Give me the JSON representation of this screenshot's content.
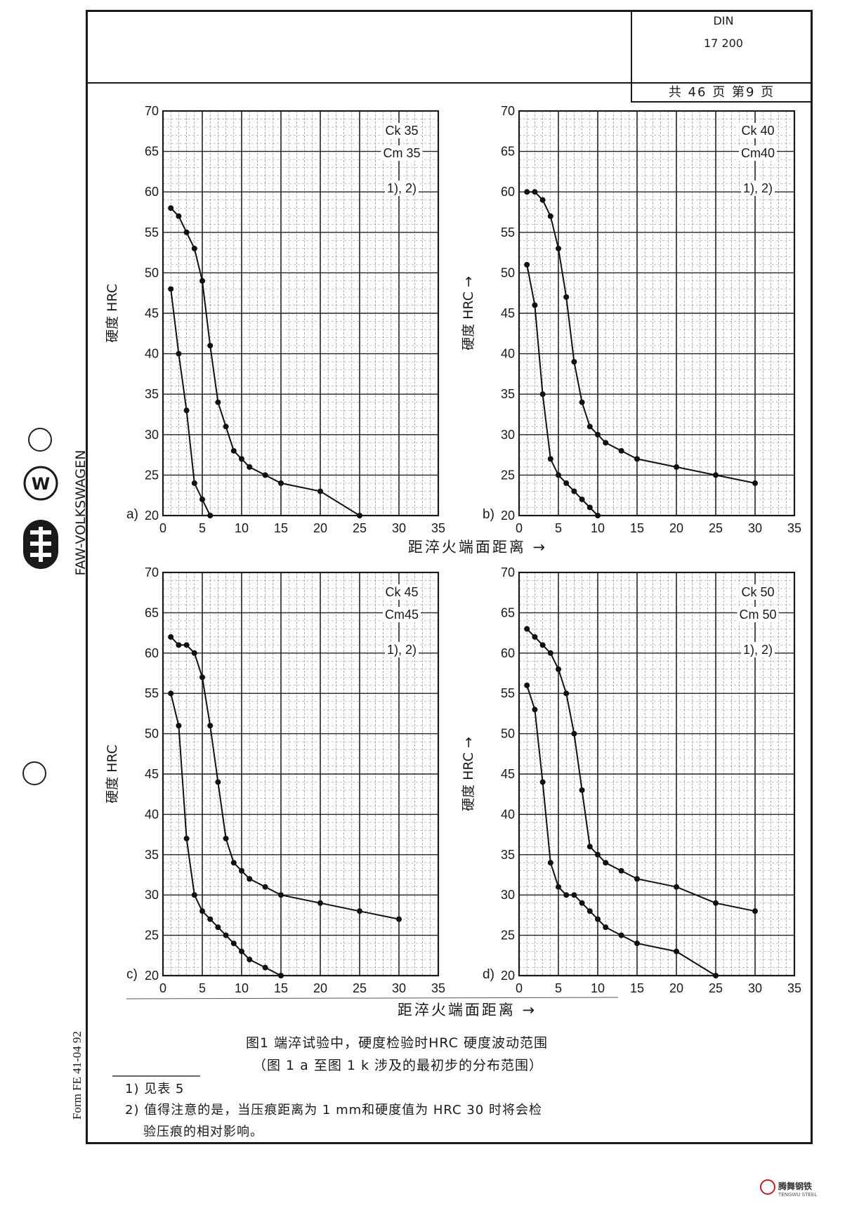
{
  "header": {
    "din_label": "DIN",
    "din_number": "17 200",
    "page_count": "共 46 页 第9 页"
  },
  "side": {
    "logo_text": "FAW-VOLKSWAGEN",
    "form_text": "Form FE 41-04 92"
  },
  "caption": {
    "line1": "图1  端淬试验中，硬度检验时HRC 硬度波动范围",
    "line2": "（图 1 a 至图 1 k 涉及的最初步的分布范围）"
  },
  "notes": {
    "note1": "1) 见表 5",
    "note2_line1": "2) 值得注意的是，当压痕距离为 1 mm和硬度值为 HRC 30 时将会检",
    "note2_line2": "验压痕的相对影响。"
  },
  "axis_titles": {
    "x": "距淬火端面距离 →",
    "y": "硬度 HRC"
  },
  "watermark": {
    "brand": "腾舞钢铁",
    "sub": "TENGWU STEEL"
  },
  "chart_data": [
    {
      "type": "line",
      "panel": "a)",
      "labels": [
        "Ck 35",
        "Cm 35",
        "1), 2)"
      ],
      "xlabel": "距淬火端面距离 →",
      "ylabel": "硬度 HRC",
      "xlim": [
        0,
        35
      ],
      "ylim": [
        20,
        70
      ],
      "xticks": [
        0,
        5,
        10,
        15,
        20,
        25,
        30,
        35
      ],
      "yticks": [
        20,
        25,
        30,
        35,
        40,
        45,
        50,
        55,
        60,
        65,
        70
      ],
      "grid": true,
      "series": [
        {
          "points": [
            [
              1,
              58
            ],
            [
              2,
              57
            ],
            [
              3,
              55
            ],
            [
              4,
              53
            ],
            [
              5,
              49
            ],
            [
              6,
              41
            ],
            [
              7,
              34
            ],
            [
              8,
              31
            ],
            [
              9,
              28
            ],
            [
              10,
              27
            ],
            [
              11,
              26
            ],
            [
              13,
              25
            ],
            [
              15,
              24
            ],
            [
              20,
              23
            ],
            [
              25,
              20
            ]
          ]
        },
        {
          "points": [
            [
              1,
              48
            ],
            [
              2,
              40
            ],
            [
              3,
              33
            ],
            [
              4,
              24
            ],
            [
              5,
              22
            ],
            [
              6,
              20
            ]
          ]
        }
      ]
    },
    {
      "type": "line",
      "panel": "b)",
      "labels": [
        "Ck 40",
        "Cm40",
        "1), 2)"
      ],
      "xlabel": "距淬火端面距离 →",
      "ylabel": "硬度 HRC →",
      "xlim": [
        0,
        35
      ],
      "ylim": [
        20,
        70
      ],
      "xticks": [
        0,
        5,
        10,
        15,
        20,
        25,
        30,
        35
      ],
      "yticks": [
        20,
        25,
        30,
        35,
        40,
        45,
        50,
        55,
        60,
        65,
        70
      ],
      "grid": true,
      "series": [
        {
          "points": [
            [
              1,
              60
            ],
            [
              2,
              60
            ],
            [
              3,
              59
            ],
            [
              4,
              57
            ],
            [
              5,
              53
            ],
            [
              6,
              47
            ],
            [
              7,
              39
            ],
            [
              8,
              34
            ],
            [
              9,
              31
            ],
            [
              10,
              30
            ],
            [
              11,
              29
            ],
            [
              13,
              28
            ],
            [
              15,
              27
            ],
            [
              20,
              26
            ],
            [
              25,
              25
            ],
            [
              30,
              24
            ]
          ]
        },
        {
          "points": [
            [
              1,
              51
            ],
            [
              2,
              46
            ],
            [
              3,
              35
            ],
            [
              4,
              27
            ],
            [
              5,
              25
            ],
            [
              6,
              24
            ],
            [
              7,
              23
            ],
            [
              8,
              22
            ],
            [
              9,
              21
            ],
            [
              10,
              20
            ]
          ]
        }
      ]
    },
    {
      "type": "line",
      "panel": "c)",
      "labels": [
        "Ck 45",
        "Cm45",
        "1), 2)"
      ],
      "xlabel": "距淬火端面距离 →",
      "ylabel": "硬度 HRC",
      "xlim": [
        0,
        35
      ],
      "ylim": [
        20,
        70
      ],
      "xticks": [
        0,
        5,
        10,
        15,
        20,
        25,
        30,
        35
      ],
      "yticks": [
        20,
        25,
        30,
        35,
        40,
        45,
        50,
        55,
        60,
        65,
        70
      ],
      "grid": true,
      "series": [
        {
          "points": [
            [
              1,
              62
            ],
            [
              2,
              61
            ],
            [
              3,
              61
            ],
            [
              4,
              60
            ],
            [
              5,
              57
            ],
            [
              6,
              51
            ],
            [
              7,
              44
            ],
            [
              8,
              37
            ],
            [
              9,
              34
            ],
            [
              10,
              33
            ],
            [
              11,
              32
            ],
            [
              13,
              31
            ],
            [
              15,
              30
            ],
            [
              20,
              29
            ],
            [
              25,
              28
            ],
            [
              30,
              27
            ]
          ]
        },
        {
          "points": [
            [
              1,
              55
            ],
            [
              2,
              51
            ],
            [
              3,
              37
            ],
            [
              4,
              30
            ],
            [
              5,
              28
            ],
            [
              6,
              27
            ],
            [
              7,
              26
            ],
            [
              8,
              25
            ],
            [
              9,
              24
            ],
            [
              10,
              23
            ],
            [
              11,
              22
            ],
            [
              13,
              21
            ],
            [
              15,
              20
            ]
          ]
        }
      ]
    },
    {
      "type": "line",
      "panel": "d)",
      "labels": [
        "Ck 50",
        "Cm 50",
        "1), 2)"
      ],
      "xlabel": "距淬火端面距离 →",
      "ylabel": "硬度 HRC →",
      "xlim": [
        0,
        35
      ],
      "ylim": [
        20,
        70
      ],
      "xticks": [
        0,
        5,
        10,
        15,
        20,
        25,
        30,
        35
      ],
      "yticks": [
        20,
        25,
        30,
        35,
        40,
        45,
        50,
        55,
        60,
        65,
        70
      ],
      "grid": true,
      "series": [
        {
          "points": [
            [
              1,
              63
            ],
            [
              2,
              62
            ],
            [
              3,
              61
            ],
            [
              4,
              60
            ],
            [
              5,
              58
            ],
            [
              6,
              55
            ],
            [
              7,
              50
            ],
            [
              8,
              43
            ],
            [
              9,
              36
            ],
            [
              10,
              35
            ],
            [
              11,
              34
            ],
            [
              13,
              33
            ],
            [
              15,
              32
            ],
            [
              20,
              31
            ],
            [
              25,
              29
            ],
            [
              30,
              28
            ]
          ]
        },
        {
          "points": [
            [
              1,
              56
            ],
            [
              2,
              53
            ],
            [
              3,
              44
            ],
            [
              4,
              34
            ],
            [
              5,
              31
            ],
            [
              6,
              30
            ],
            [
              7,
              30
            ],
            [
              8,
              29
            ],
            [
              9,
              28
            ],
            [
              10,
              27
            ],
            [
              11,
              26
            ],
            [
              13,
              25
            ],
            [
              15,
              24
            ],
            [
              20,
              23
            ],
            [
              25,
              20
            ]
          ]
        }
      ]
    }
  ]
}
